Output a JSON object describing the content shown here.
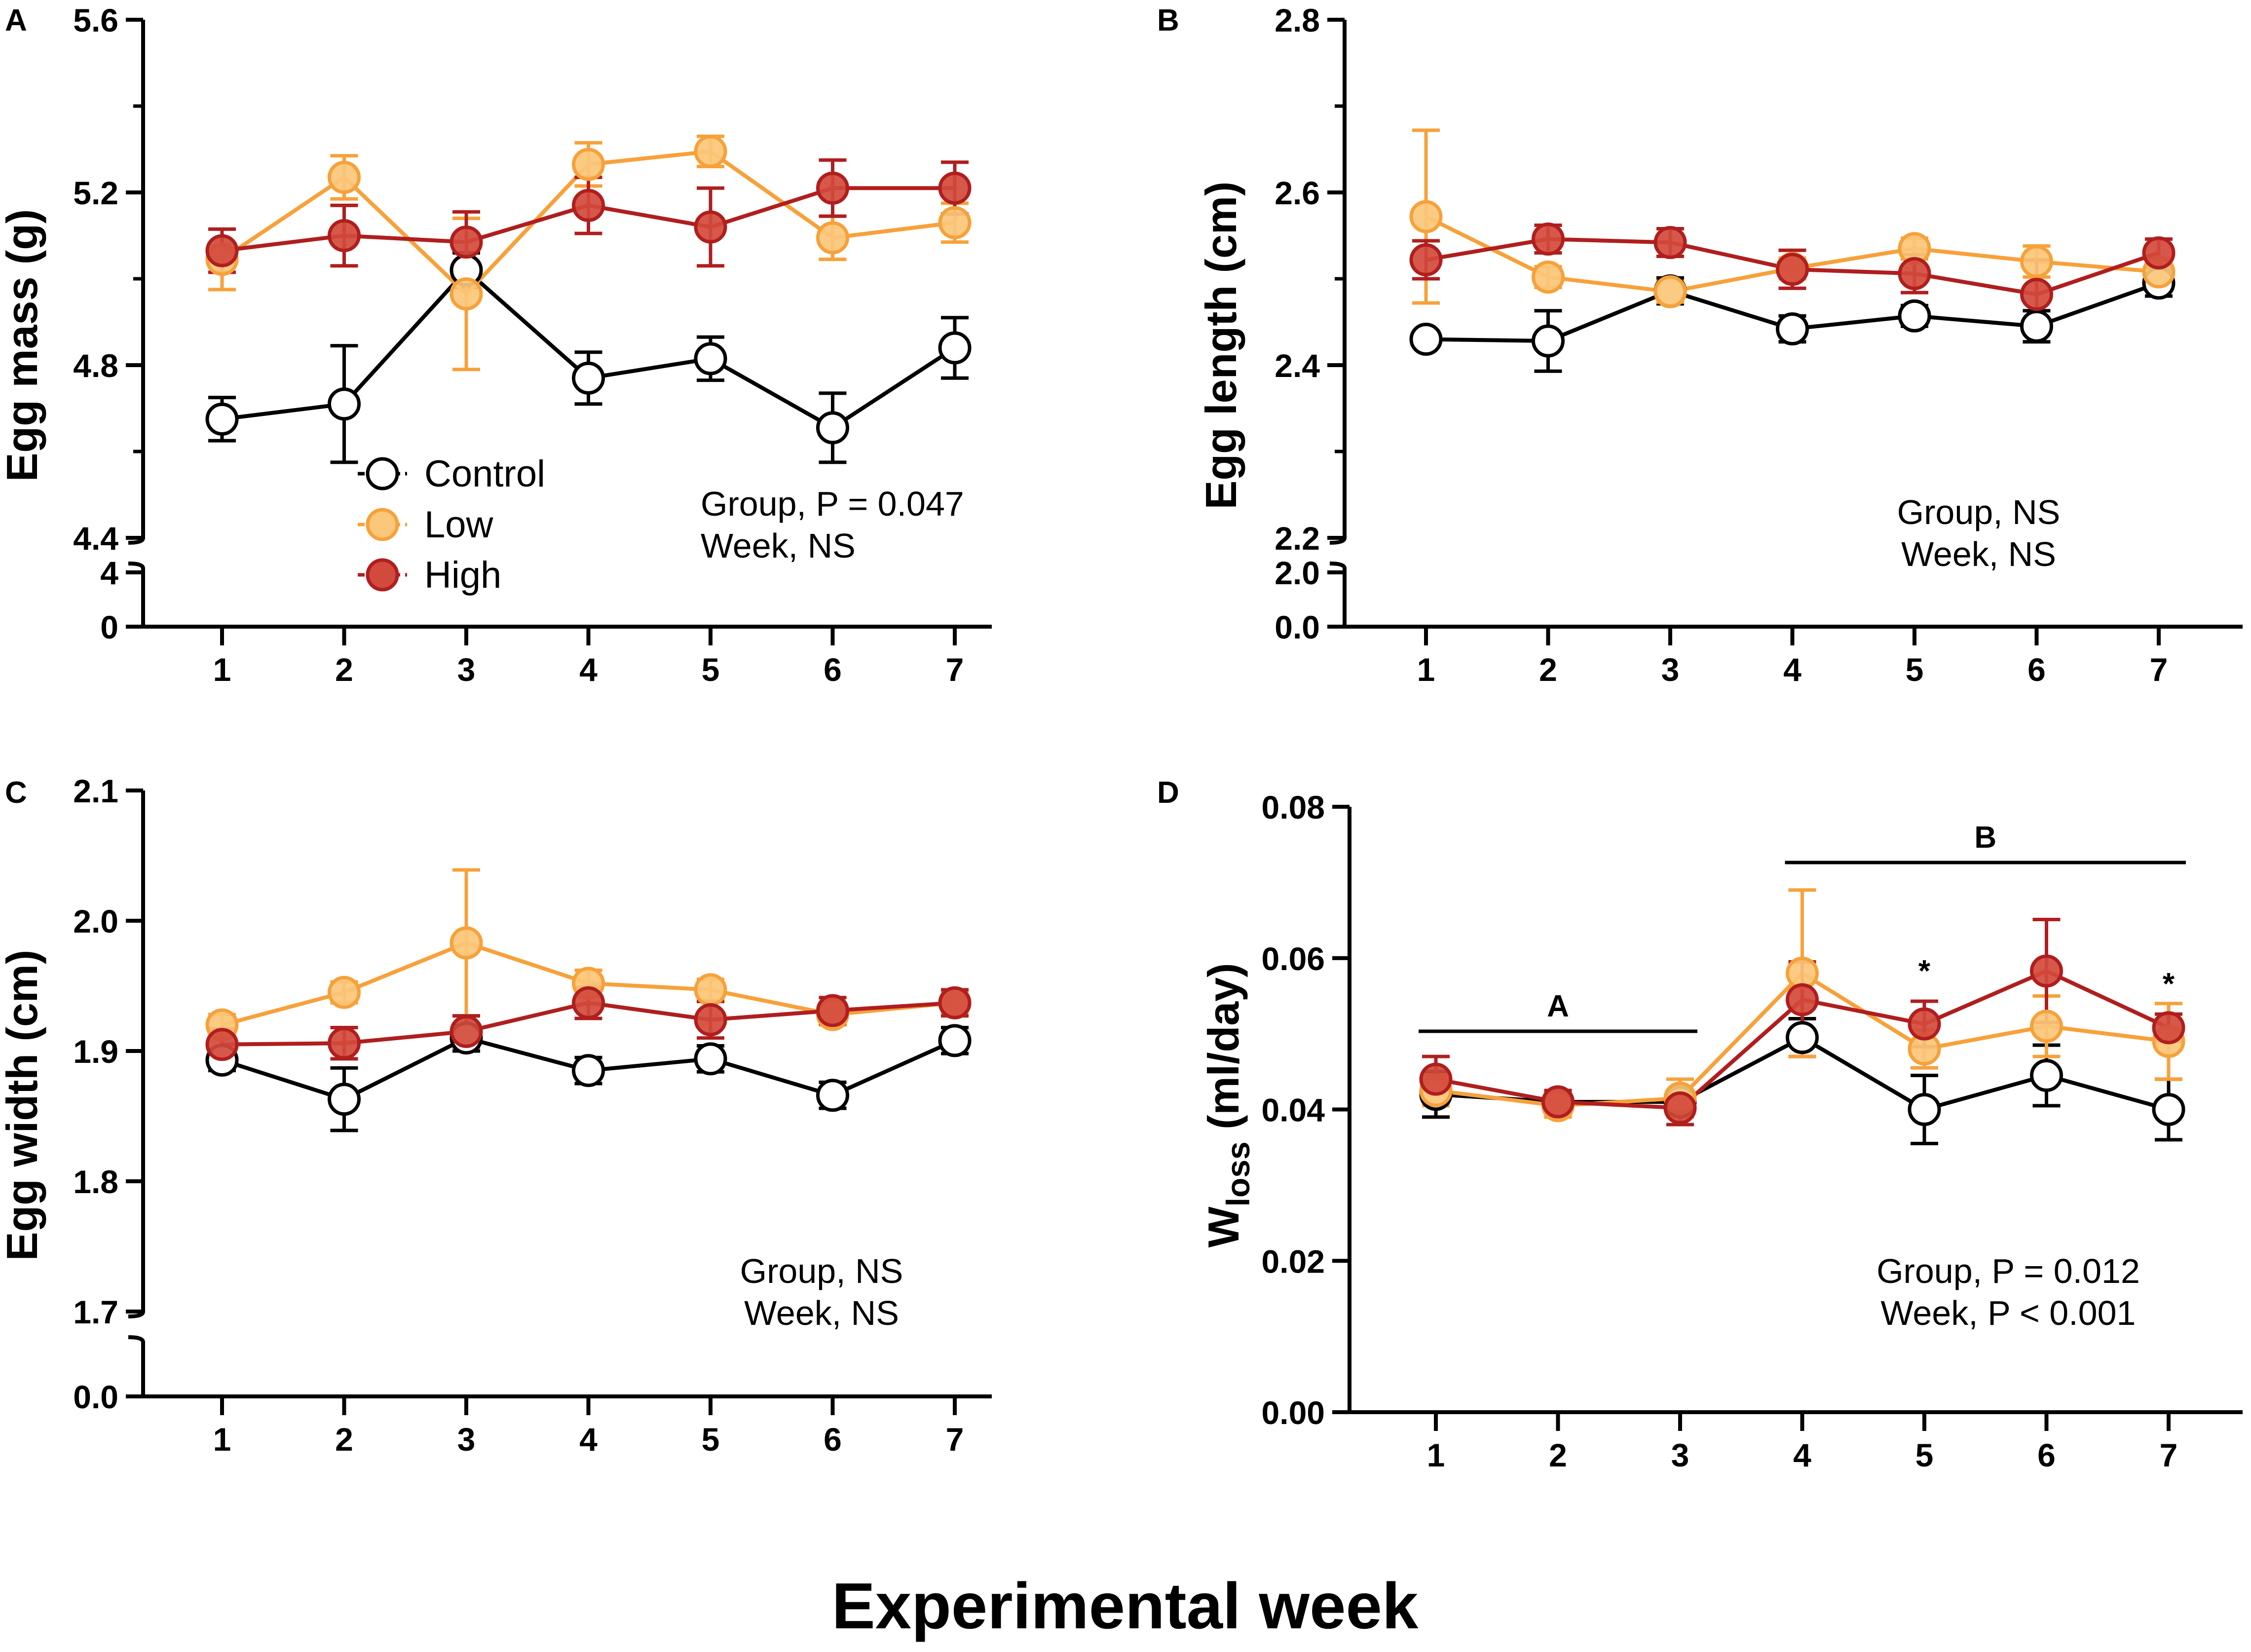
{
  "figure": {
    "xlabel": "Experimental week"
  },
  "legend": [
    {
      "name": "Control",
      "color": "#000000",
      "fill": "#ffffff"
    },
    {
      "name": "Low",
      "color": "#f7a13a",
      "fill": "#fbc77a"
    },
    {
      "name": "High",
      "color": "#b01e1e",
      "fill": "#d24a3c"
    }
  ],
  "chart_data": [
    {
      "panel": "A",
      "type": "line",
      "ylabel": "Egg mass (g)",
      "categories": [
        1,
        2,
        3,
        4,
        5,
        6,
        7
      ],
      "ylim": [
        4.4,
        5.6
      ],
      "yticks": [
        "5.6",
        "5.2",
        "4.8",
        "4.4"
      ],
      "broken_ticks": [
        "4",
        "0"
      ],
      "annotations": [
        "Group, P = 0.047",
        "Week, NS"
      ],
      "series": [
        {
          "name": "Control",
          "values": [
            4.675,
            4.71,
            5.02,
            4.77,
            4.815,
            4.655,
            4.84
          ],
          "errors": [
            0.05,
            0.135,
            0.04,
            0.06,
            0.05,
            0.08,
            0.07
          ]
        },
        {
          "name": "Low",
          "values": [
            5.045,
            5.235,
            4.965,
            5.265,
            5.295,
            5.095,
            5.13
          ],
          "errors": [
            0.07,
            0.05,
            0.175,
            0.05,
            0.035,
            0.05,
            0.045
          ]
        },
        {
          "name": "High",
          "values": [
            5.065,
            5.1,
            5.085,
            5.17,
            5.12,
            5.21,
            5.21
          ],
          "errors": [
            0.05,
            0.07,
            0.07,
            0.065,
            0.09,
            0.065,
            0.06
          ]
        }
      ]
    },
    {
      "panel": "B",
      "type": "line",
      "ylabel": "Egg length (cm)",
      "categories": [
        1,
        2,
        3,
        4,
        5,
        6,
        7
      ],
      "ylim": [
        2.2,
        2.8
      ],
      "yticks": [
        "2.8",
        "2.6",
        "2.4",
        "2.2"
      ],
      "broken_ticks": [
        "2.0",
        "0.0"
      ],
      "annotations": [
        "Group, NS",
        "Week, NS"
      ],
      "series": [
        {
          "name": "Control",
          "values": [
            2.43,
            2.428,
            2.486,
            2.442,
            2.457,
            2.445,
            2.495
          ],
          "errors": [
            0.005,
            0.035,
            0.015,
            0.015,
            0.012,
            0.018,
            0.015
          ]
        },
        {
          "name": "Low",
          "values": [
            2.572,
            2.502,
            2.485,
            2.512,
            2.535,
            2.52,
            2.508
          ],
          "errors": [
            0.1,
            0.012,
            0.012,
            0.012,
            0.012,
            0.018,
            0.015
          ]
        },
        {
          "name": "High",
          "values": [
            2.522,
            2.546,
            2.542,
            2.511,
            2.506,
            2.482,
            2.53
          ],
          "errors": [
            0.022,
            0.016,
            0.016,
            0.022,
            0.022,
            0.04,
            0.016
          ]
        }
      ]
    },
    {
      "panel": "C",
      "type": "line",
      "ylabel": "Egg width (cm)",
      "categories": [
        1,
        2,
        3,
        4,
        5,
        6,
        7
      ],
      "ylim": [
        1.7,
        2.1
      ],
      "yticks": [
        "2.1",
        "2.0",
        "1.9",
        "1.8",
        "1.7"
      ],
      "broken_ticks": [
        "0.0"
      ],
      "annotations": [
        "Group, NS",
        "Week, NS"
      ],
      "series": [
        {
          "name": "Control",
          "values": [
            1.893,
            1.863,
            1.91,
            1.885,
            1.894,
            1.866,
            1.908
          ],
          "errors": [
            0.008,
            0.024,
            0.01,
            0.01,
            0.01,
            0.01,
            0.01
          ]
        },
        {
          "name": "Low",
          "values": [
            1.92,
            1.945,
            1.983,
            1.952,
            1.947,
            1.928,
            1.937
          ],
          "errors": [
            0.008,
            0.008,
            0.056,
            0.01,
            0.008,
            0.008,
            0.008
          ]
        },
        {
          "name": "High",
          "values": [
            1.905,
            1.906,
            1.915,
            1.937,
            1.924,
            1.931,
            1.937
          ],
          "errors": [
            0.012,
            0.012,
            0.012,
            0.012,
            0.014,
            0.01,
            0.01
          ]
        }
      ]
    },
    {
      "panel": "D",
      "type": "line",
      "ylabel": "W",
      "ylabel_sub": "loss",
      "ylabel_suffix": " (ml/day)",
      "categories": [
        1,
        2,
        3,
        4,
        5,
        6,
        7
      ],
      "ylim": [
        0.0,
        0.08
      ],
      "yticks": [
        "0.08",
        "0.06",
        "0.04",
        "0.02",
        "0.00"
      ],
      "broken_ticks": [],
      "annotations": [
        "Group, P = 0.012",
        "Week, P < 0.001"
      ],
      "groups": [
        {
          "label": "A",
          "from": 1,
          "to": 3
        },
        {
          "label": "B",
          "from": 4,
          "to": 7
        }
      ],
      "significance": [
        {
          "week": 5,
          "mark": "*"
        },
        {
          "week": 7,
          "mark": "*"
        }
      ],
      "series": [
        {
          "name": "Control",
          "values": [
            0.042,
            0.041,
            0.041,
            0.0495,
            0.04,
            0.0445,
            0.04
          ],
          "errors": [
            0.003,
            0.0015,
            0.0015,
            0.0025,
            0.0045,
            0.004,
            0.004
          ]
        },
        {
          "name": "Low",
          "values": [
            0.0425,
            0.0405,
            0.0415,
            0.058,
            0.048,
            0.051,
            0.049
          ],
          "errors": [
            0.002,
            0.0015,
            0.0025,
            0.011,
            0.0025,
            0.004,
            0.005
          ]
        },
        {
          "name": "High",
          "values": [
            0.044,
            0.041,
            0.0402,
            0.0545,
            0.0513,
            0.0583,
            0.0508
          ],
          "errors": [
            0.003,
            0.0015,
            0.0022,
            0.005,
            0.003,
            0.0068,
            0.0018
          ]
        }
      ]
    }
  ]
}
